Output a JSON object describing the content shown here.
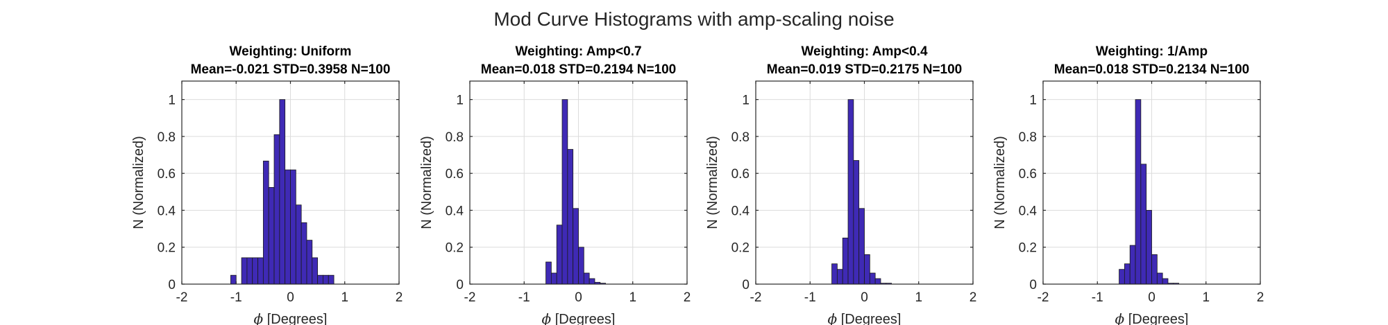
{
  "figure": {
    "title": "Mod Curve Histograms with amp-scaling noise"
  },
  "colors": {
    "bar_fill": "#3f2ab5",
    "bar_edge": "#1a1a1a",
    "grid": "#dcdcdc",
    "axis": "#262626"
  },
  "chart_data": [
    {
      "type": "bar",
      "title": "Weighting: Uniform",
      "subtitle": "Mean=-0.021 STD=0.3958 N=100",
      "xlabel_symbol": "ϕ",
      "xlabel": " [Degrees]",
      "ylabel": "N (Normalized)",
      "xlim": [
        -2,
        2
      ],
      "ylim": [
        0,
        1.1
      ],
      "xticks": [
        -2,
        -1,
        0,
        1,
        2
      ],
      "xtick_labels": [
        "-2",
        "-1",
        "0",
        "1",
        "2"
      ],
      "yticks": [
        0,
        0.2,
        0.4,
        0.6,
        0.8,
        1
      ],
      "ytick_labels": [
        "0",
        "0.2",
        "0.4",
        "0.6",
        "0.8",
        "1"
      ],
      "grid": true,
      "bin_edges": [
        -1.6,
        -1.5,
        -1.4,
        -1.3,
        -1.2,
        -1.1,
        -1.0,
        -0.9,
        -0.8,
        -0.7,
        -0.6,
        -0.5,
        -0.4,
        -0.3,
        -0.2,
        -0.1,
        0.0,
        0.1,
        0.2,
        0.3,
        0.4,
        0.5,
        0.6,
        0.7,
        0.8,
        0.9,
        1.0,
        1.1,
        1.2,
        1.3,
        1.4,
        1.5,
        1.6,
        1.7
      ],
      "values": [
        0,
        0,
        0,
        0,
        0,
        0.048,
        0,
        0.143,
        0.143,
        0.143,
        0.143,
        0.667,
        0.524,
        0.81,
        1.0,
        0.619,
        0.619,
        0.429,
        0.333,
        0.238,
        0.143,
        0.048,
        0.048,
        0.048,
        0,
        0,
        0,
        0,
        0,
        0,
        0,
        0,
        0
      ]
    },
    {
      "type": "bar",
      "title": "Weighting: Amp<0.7",
      "subtitle": "Mean=0.018 STD=0.2194 N=100",
      "xlabel_symbol": "ϕ",
      "xlabel": " [Degrees]",
      "ylabel": "N (Normalized)",
      "xlim": [
        -2,
        2
      ],
      "ylim": [
        0,
        1.1
      ],
      "xticks": [
        -2,
        -1,
        0,
        1,
        2
      ],
      "xtick_labels": [
        "-2",
        "-1",
        "0",
        "1",
        "2"
      ],
      "yticks": [
        0,
        0.2,
        0.4,
        0.6,
        0.8,
        1
      ],
      "ytick_labels": [
        "0",
        "0.2",
        "0.4",
        "0.6",
        "0.8",
        "1"
      ],
      "grid": true,
      "bin_edges": [
        -1.6,
        -1.5,
        -1.4,
        -1.3,
        -1.2,
        -1.1,
        -1.0,
        -0.9,
        -0.8,
        -0.7,
        -0.6,
        -0.5,
        -0.4,
        -0.3,
        -0.2,
        -0.1,
        0.0,
        0.1,
        0.2,
        0.3,
        0.4,
        0.5,
        0.6,
        0.7,
        0.8,
        0.9,
        1.0,
        1.1,
        1.2,
        1.3,
        1.4,
        1.5,
        1.6,
        1.7
      ],
      "values": [
        0,
        0,
        0,
        0,
        0,
        0,
        0,
        0,
        0,
        0,
        0.12,
        0.06,
        0.32,
        1.0,
        0.73,
        0.41,
        0.2,
        0.06,
        0.03,
        0.01,
        0.005,
        0,
        0,
        0,
        0,
        0,
        0,
        0,
        0,
        0,
        0,
        0,
        0
      ]
    },
    {
      "type": "bar",
      "title": "Weighting: Amp<0.4",
      "subtitle": "Mean=0.019 STD=0.2175 N=100",
      "xlabel_symbol": "ϕ",
      "xlabel": " [Degrees]",
      "ylabel": "N (Normalized)",
      "xlim": [
        -2,
        2
      ],
      "ylim": [
        0,
        1.1
      ],
      "xticks": [
        -2,
        -1,
        0,
        1,
        2
      ],
      "xtick_labels": [
        "-2",
        "-1",
        "0",
        "1",
        "2"
      ],
      "yticks": [
        0,
        0.2,
        0.4,
        0.6,
        0.8,
        1
      ],
      "ytick_labels": [
        "0",
        "0.2",
        "0.4",
        "0.6",
        "0.8",
        "1"
      ],
      "grid": true,
      "bin_edges": [
        -1.6,
        -1.5,
        -1.4,
        -1.3,
        -1.2,
        -1.1,
        -1.0,
        -0.9,
        -0.8,
        -0.7,
        -0.6,
        -0.5,
        -0.4,
        -0.3,
        -0.2,
        -0.1,
        0.0,
        0.1,
        0.2,
        0.3,
        0.4,
        0.5,
        0.6,
        0.7,
        0.8,
        0.9,
        1.0,
        1.1,
        1.2,
        1.3,
        1.4,
        1.5,
        1.6,
        1.7
      ],
      "values": [
        0,
        0,
        0,
        0,
        0,
        0,
        0,
        0,
        0,
        0,
        0.11,
        0.08,
        0.25,
        1.0,
        0.67,
        0.41,
        0.16,
        0.06,
        0.03,
        0.005,
        0.005,
        0,
        0,
        0,
        0,
        0,
        0,
        0,
        0,
        0,
        0,
        0,
        0
      ]
    },
    {
      "type": "bar",
      "title": "Weighting: 1/Amp",
      "subtitle": "Mean=0.018 STD=0.2134 N=100",
      "xlabel_symbol": "ϕ",
      "xlabel": " [Degrees]",
      "ylabel": "N (Normalized)",
      "xlim": [
        -2,
        2
      ],
      "ylim": [
        0,
        1.1
      ],
      "xticks": [
        -2,
        -1,
        0,
        1,
        2
      ],
      "xtick_labels": [
        "-2",
        "-1",
        "0",
        "1",
        "2"
      ],
      "yticks": [
        0,
        0.2,
        0.4,
        0.6,
        0.8,
        1
      ],
      "ytick_labels": [
        "0",
        "0.2",
        "0.4",
        "0.6",
        "0.8",
        "1"
      ],
      "grid": true,
      "bin_edges": [
        -1.6,
        -1.5,
        -1.4,
        -1.3,
        -1.2,
        -1.1,
        -1.0,
        -0.9,
        -0.8,
        -0.7,
        -0.6,
        -0.5,
        -0.4,
        -0.3,
        -0.2,
        -0.1,
        0.0,
        0.1,
        0.2,
        0.3,
        0.4,
        0.5,
        0.6,
        0.7,
        0.8,
        0.9,
        1.0,
        1.1,
        1.2,
        1.3,
        1.4,
        1.5,
        1.6,
        1.7
      ],
      "values": [
        0,
        0,
        0,
        0,
        0,
        0,
        0,
        0,
        0,
        0,
        0.08,
        0.11,
        0.21,
        1.0,
        0.65,
        0.4,
        0.16,
        0.06,
        0.03,
        0.005,
        0.005,
        0,
        0,
        0,
        0,
        0,
        0,
        0,
        0,
        0,
        0,
        0,
        0
      ]
    }
  ]
}
